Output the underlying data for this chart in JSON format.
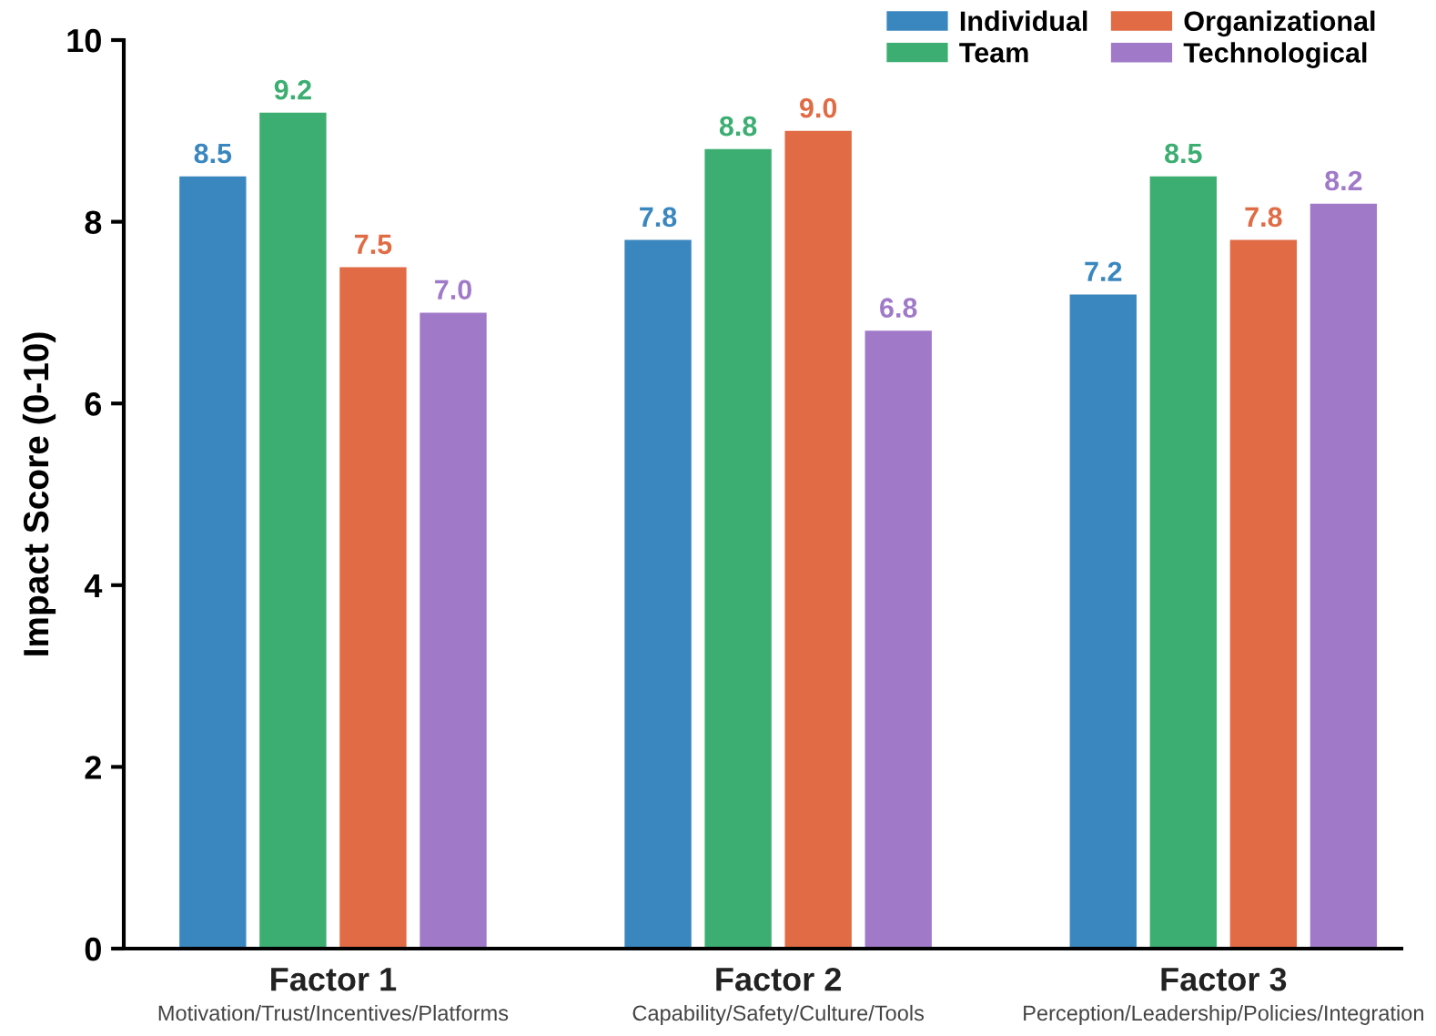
{
  "chart_data": {
    "type": "bar",
    "ylabel": "Impact Score (0-10)",
    "categories": [
      "Factor 1\nMotivation/Trust/Incentives/Platforms",
      "Factor 2\nCapability/Safety/Culture/Tools",
      "Factor 3\nPerception/Leadership/Policies/Integration"
    ],
    "series": [
      {
        "name": "Individual",
        "color": "#3a87c0",
        "values": [
          8.5,
          7.8,
          7.2
        ],
        "value_labels": [
          "8.5",
          "7.8",
          "7.2"
        ]
      },
      {
        "name": "Team",
        "color": "#3cae72",
        "values": [
          9.2,
          8.8,
          8.5
        ],
        "value_labels": [
          "9.2",
          "8.8",
          "8.5"
        ]
      },
      {
        "name": "Organizational",
        "color": "#e06b44",
        "values": [
          7.5,
          9.0,
          7.8
        ],
        "value_labels": [
          "7.5",
          "9.0",
          "7.8"
        ]
      },
      {
        "name": "Technological",
        "color": "#a07ac8",
        "values": [
          7.0,
          6.8,
          8.2
        ],
        "value_labels": [
          "7.0",
          "6.8",
          "8.2"
        ]
      }
    ],
    "ylim": [
      0,
      10
    ],
    "yticks": [
      0,
      2,
      4,
      6,
      8,
      10
    ],
    "legend": "top right",
    "grid": false
  }
}
